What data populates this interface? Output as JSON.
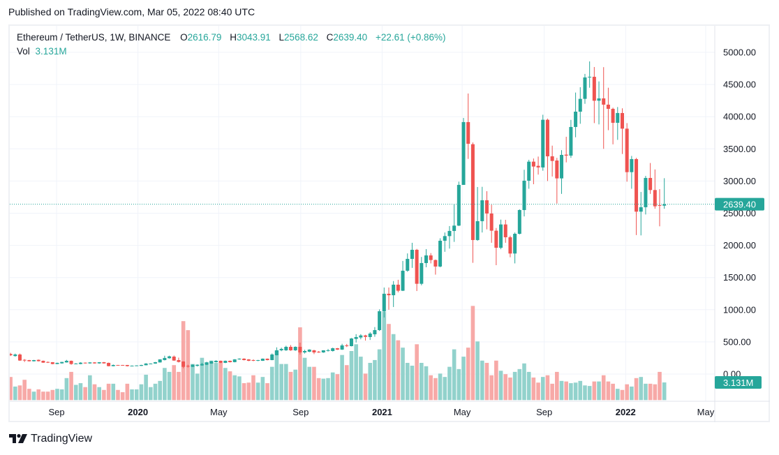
{
  "published": "Published on TradingView.com, Mar 05, 2022 08:40 UTC",
  "legend": {
    "symbol": "Ethereum / TetherUS, 1W, BINANCE",
    "o_label": "O",
    "o": "2616.79",
    "h_label": "H",
    "h": "3043.91",
    "l_label": "L",
    "l": "2568.62",
    "c_label": "C",
    "c": "2639.40",
    "change": "+22.61 (+0.86%)",
    "vol_label": "Vol",
    "vol": "3.131M"
  },
  "branding": {
    "name": "TradingView",
    "logo_icon": "tradingview-logo-icon"
  },
  "colors": {
    "up": "#26a69a",
    "down": "#ef5350",
    "up_volume": "#92d2cc",
    "down_volume": "#f7a9a7",
    "grid": "#f0f3fa"
  },
  "chart_data": {
    "type": "candlestick",
    "interval": "1W",
    "title": "",
    "xlabel": "",
    "ylabel": "",
    "ylim": [
      0,
      5300
    ],
    "grid": true,
    "price_axis_position": "right",
    "price_ticks": [
      "5000.00",
      "4500.00",
      "4000.00",
      "3500.00",
      "3000.00",
      "2500.00",
      "2000.00",
      "1500.00",
      "1000.00",
      "500.00",
      "0.00"
    ],
    "time_ticks": [
      {
        "label": "Sep",
        "date": "2019-09-01",
        "bold": false
      },
      {
        "label": "2020",
        "date": "2020-01-01",
        "bold": true
      },
      {
        "label": "May",
        "date": "2020-05-01",
        "bold": false
      },
      {
        "label": "Sep",
        "date": "2020-09-01",
        "bold": false
      },
      {
        "label": "2021",
        "date": "2021-01-01",
        "bold": true
      },
      {
        "label": "May",
        "date": "2021-05-01",
        "bold": false
      },
      {
        "label": "Sep",
        "date": "2021-09-01",
        "bold": false
      },
      {
        "label": "2022",
        "date": "2022-01-01",
        "bold": true
      },
      {
        "label": "May",
        "date": "2022-05-01",
        "bold": false
      }
    ],
    "last_price": {
      "value": 2639.4,
      "label": "2639.40"
    },
    "last_volume": {
      "value": 3.131,
      "label": "3.131M"
    },
    "volume_unit": "M",
    "columns": [
      "date",
      "open",
      "high",
      "low",
      "close",
      "volume"
    ],
    "candles": [
      [
        "2019-06-24",
        312,
        330,
        280,
        292,
        4.1
      ],
      [
        "2019-07-01",
        280,
        318,
        270,
        304,
        2.4
      ],
      [
        "2019-07-08",
        304,
        318,
        205,
        210,
        2.6
      ],
      [
        "2019-07-15",
        221,
        232,
        188,
        210,
        3.6
      ],
      [
        "2019-07-22",
        217,
        220,
        196,
        199,
        2.0
      ],
      [
        "2019-07-29",
        199,
        220,
        196,
        217,
        1.5
      ],
      [
        "2019-08-05",
        221,
        226,
        196,
        200,
        1.9
      ],
      [
        "2019-08-12",
        206,
        210,
        174,
        177,
        1.5
      ],
      [
        "2019-08-19",
        188,
        195,
        172,
        177,
        1.5
      ],
      [
        "2019-08-26",
        184,
        186,
        152,
        156,
        1.8
      ],
      [
        "2019-09-02",
        156,
        178,
        154,
        174,
        2.0
      ],
      [
        "2019-09-09",
        166,
        190,
        163,
        188,
        1.9
      ],
      [
        "2019-09-16",
        181,
        220,
        178,
        206,
        3.9
      ],
      [
        "2019-09-23",
        206,
        210,
        145,
        156,
        5.0
      ],
      [
        "2019-09-30",
        156,
        170,
        152,
        163,
        2.7
      ],
      [
        "2019-10-07",
        156,
        184,
        152,
        177,
        3.0
      ],
      [
        "2019-10-14",
        177,
        180,
        163,
        166,
        2.3
      ],
      [
        "2019-10-21",
        166,
        186,
        160,
        181,
        4.4
      ],
      [
        "2019-10-28",
        181,
        184,
        163,
        166,
        2.8
      ],
      [
        "2019-11-04",
        166,
        186,
        160,
        184,
        2.3
      ],
      [
        "2019-11-11",
        184,
        188,
        163,
        166,
        1.8
      ],
      [
        "2019-11-18",
        174,
        178,
        120,
        123,
        2.9
      ],
      [
        "2019-11-25",
        123,
        148,
        120,
        141,
        2.9
      ],
      [
        "2019-12-02",
        141,
        142,
        130,
        134,
        1.8
      ],
      [
        "2019-12-09",
        141,
        142,
        130,
        134,
        1.4
      ],
      [
        "2019-12-16",
        141,
        142,
        118,
        123,
        2.9
      ],
      [
        "2019-12-23",
        127,
        133,
        124,
        130,
        1.9
      ],
      [
        "2019-12-30",
        127,
        136,
        124,
        134,
        1.9
      ],
      [
        "2020-01-06",
        127,
        144,
        125,
        141,
        2.8
      ],
      [
        "2020-01-13",
        137,
        170,
        135,
        163,
        4.5
      ],
      [
        "2020-01-20",
        156,
        166,
        154,
        163,
        2.3
      ],
      [
        "2020-01-27",
        163,
        188,
        160,
        184,
        2.9
      ],
      [
        "2020-02-03",
        181,
        230,
        178,
        228,
        3.4
      ],
      [
        "2020-02-10",
        217,
        285,
        212,
        250,
        5.7
      ],
      [
        "2020-02-17",
        246,
        285,
        240,
        275,
        5.0
      ],
      [
        "2020-02-24",
        271,
        288,
        205,
        210,
        6.2
      ],
      [
        "2020-03-02",
        217,
        255,
        180,
        188,
        5.0
      ],
      [
        "2020-03-09",
        195,
        200,
        90,
        112,
        14.0
      ],
      [
        "2020-03-16",
        127,
        145,
        100,
        123,
        12.4
      ],
      [
        "2020-03-23",
        112,
        150,
        110,
        145,
        6.4
      ],
      [
        "2020-03-30",
        127,
        150,
        118,
        145,
        4.7
      ],
      [
        "2020-04-06",
        134,
        174,
        130,
        156,
        7.5
      ],
      [
        "2020-04-13",
        145,
        190,
        140,
        181,
        6.7
      ],
      [
        "2020-04-20",
        163,
        205,
        160,
        199,
        7.0
      ],
      [
        "2020-04-27",
        185,
        215,
        180,
        206,
        6.6
      ],
      [
        "2020-05-04",
        206,
        210,
        170,
        174,
        6.6
      ],
      [
        "2020-05-11",
        174,
        210,
        170,
        206,
        5.7
      ],
      [
        "2020-05-18",
        206,
        210,
        180,
        185,
        5.1
      ],
      [
        "2020-05-25",
        185,
        232,
        182,
        228,
        4.4
      ],
      [
        "2020-06-01",
        228,
        245,
        222,
        239,
        4.2
      ],
      [
        "2020-06-08",
        239,
        245,
        212,
        217,
        3.0
      ],
      [
        "2020-06-15",
        228,
        232,
        200,
        206,
        3.1
      ],
      [
        "2020-06-22",
        217,
        228,
        200,
        206,
        4.4
      ],
      [
        "2020-06-29",
        206,
        220,
        200,
        217,
        3.1
      ],
      [
        "2020-07-06",
        206,
        242,
        204,
        239,
        4.1
      ],
      [
        "2020-07-13",
        239,
        242,
        212,
        217,
        3.0
      ],
      [
        "2020-07-20",
        217,
        320,
        215,
        304,
        5.9
      ],
      [
        "2020-07-27",
        293,
        415,
        290,
        369,
        8.8
      ],
      [
        "2020-08-03",
        369,
        410,
        355,
        391,
        6.4
      ],
      [
        "2020-08-10",
        369,
        440,
        360,
        423,
        6.4
      ],
      [
        "2020-08-17",
        423,
        450,
        360,
        369,
        5.0
      ],
      [
        "2020-08-24",
        369,
        430,
        360,
        423,
        5.4
      ],
      [
        "2020-08-31",
        423,
        488,
        304,
        336,
        12.9
      ],
      [
        "2020-09-07",
        336,
        378,
        318,
        358,
        7.5
      ],
      [
        "2020-09-14",
        347,
        385,
        340,
        380,
        5.9
      ],
      [
        "2020-09-21",
        369,
        377,
        310,
        336,
        5.9
      ],
      [
        "2020-09-28",
        347,
        358,
        330,
        336,
        3.9
      ],
      [
        "2020-10-05",
        336,
        370,
        330,
        369,
        3.8
      ],
      [
        "2020-10-12",
        358,
        390,
        350,
        369,
        3.9
      ],
      [
        "2020-10-19",
        358,
        410,
        350,
        401,
        4.9
      ],
      [
        "2020-10-26",
        401,
        405,
        375,
        380,
        4.6
      ],
      [
        "2020-11-02",
        380,
        470,
        375,
        445,
        8.0
      ],
      [
        "2020-11-09",
        445,
        468,
        420,
        434,
        6.2
      ],
      [
        "2020-11-16",
        434,
        560,
        430,
        553,
        8.7
      ],
      [
        "2020-11-23",
        546,
        620,
        490,
        575,
        9.9
      ],
      [
        "2020-11-30",
        568,
        620,
        540,
        600,
        7.7
      ],
      [
        "2020-12-07",
        600,
        610,
        520,
        578,
        4.7
      ],
      [
        "2020-12-14",
        575,
        650,
        530,
        629,
        6.6
      ],
      [
        "2020-12-21",
        618,
        730,
        580,
        683,
        7.1
      ],
      [
        "2020-12-28",
        683,
        1005,
        670,
        976,
        9.0
      ],
      [
        "2021-01-04",
        976,
        1345,
        880,
        1248,
        15.7
      ],
      [
        "2021-01-11",
        1248,
        1345,
        1000,
        1225,
        13.5
      ],
      [
        "2021-01-18",
        1225,
        1445,
        1042,
        1389,
        11.7
      ],
      [
        "2021-01-25",
        1389,
        1465,
        1270,
        1295,
        10.6
      ],
      [
        "2021-02-01",
        1295,
        1758,
        1290,
        1606,
        9.3
      ],
      [
        "2021-02-08",
        1606,
        1875,
        1590,
        1790,
        6.6
      ],
      [
        "2021-02-15",
        1790,
        2040,
        1650,
        1931,
        6.1
      ],
      [
        "2021-02-22",
        1931,
        1945,
        1290,
        1403,
        9.9
      ],
      [
        "2021-03-01",
        1403,
        1820,
        1380,
        1725,
        6.6
      ],
      [
        "2021-03-08",
        1725,
        1942,
        1660,
        1844,
        6.0
      ],
      [
        "2021-03-15",
        1844,
        1880,
        1720,
        1772,
        4.4
      ],
      [
        "2021-03-22",
        1772,
        1780,
        1545,
        1671,
        3.9
      ],
      [
        "2021-03-29",
        1671,
        2110,
        1660,
        2072,
        4.7
      ],
      [
        "2021-04-05",
        2072,
        2200,
        1900,
        2144,
        4.1
      ],
      [
        "2021-04-12",
        2144,
        2300,
        1950,
        2224,
        5.9
      ],
      [
        "2021-04-19",
        2224,
        2640,
        2054,
        2307,
        9.0
      ],
      [
        "2021-04-26",
        2307,
        2990,
        2300,
        2940,
        5.5
      ],
      [
        "2021-05-03",
        2940,
        3980,
        2940,
        3916,
        7.7
      ],
      [
        "2021-05-10",
        3916,
        4360,
        3344,
        3579,
        9.3
      ],
      [
        "2021-05-17",
        3572,
        3600,
        1729,
        2083,
        16.7
      ],
      [
        "2021-05-24",
        2083,
        2907,
        2070,
        2376,
        10.4
      ],
      [
        "2021-05-31",
        2376,
        2910,
        2200,
        2701,
        7.0
      ],
      [
        "2021-06-07",
        2701,
        2842,
        2249,
        2495,
        6.6
      ],
      [
        "2021-06-14",
        2495,
        2632,
        2040,
        2228,
        4.4
      ],
      [
        "2021-06-21",
        2228,
        2270,
        1692,
        1963,
        7.0
      ],
      [
        "2021-06-28",
        1963,
        2400,
        1940,
        2325,
        5.2
      ],
      [
        "2021-07-05",
        2325,
        2397,
        2040,
        2126,
        4.6
      ],
      [
        "2021-07-12",
        2126,
        2150,
        1815,
        1873,
        4.0
      ],
      [
        "2021-07-19",
        1873,
        2200,
        1720,
        2180,
        5.0
      ],
      [
        "2021-07-26",
        2180,
        2560,
        2170,
        2549,
        5.5
      ],
      [
        "2021-08-02",
        2549,
        3175,
        2450,
        3005,
        6.5
      ],
      [
        "2021-08-09",
        3005,
        3330,
        2880,
        3301,
        5.0
      ],
      [
        "2021-08-16",
        3301,
        3350,
        2950,
        3225,
        4.0
      ],
      [
        "2021-08-23",
        3236,
        3380,
        3100,
        3211,
        3.1
      ],
      [
        "2021-08-30",
        3211,
        4030,
        3160,
        3952,
        4.1
      ],
      [
        "2021-09-06",
        3952,
        3970,
        3000,
        3384,
        4.4
      ],
      [
        "2021-09-13",
        3384,
        3550,
        3070,
        3312,
        2.9
      ],
      [
        "2021-09-20",
        3319,
        3360,
        2650,
        3041,
        5.0
      ],
      [
        "2021-09-27",
        3041,
        3480,
        2800,
        3406,
        3.4
      ],
      [
        "2021-10-04",
        3410,
        3688,
        3290,
        3395,
        3.3
      ],
      [
        "2021-10-11",
        3395,
        3950,
        3360,
        3840,
        3.0
      ],
      [
        "2021-10-18",
        3840,
        4375,
        3680,
        4078,
        3.1
      ],
      [
        "2021-10-25",
        4078,
        4458,
        3890,
        4277,
        3.4
      ],
      [
        "2021-11-01",
        4277,
        4665,
        4200,
        4610,
        2.6
      ],
      [
        "2021-11-08",
        4610,
        4859,
        4450,
        4620,
        2.5
      ],
      [
        "2021-11-15",
        4620,
        4772,
        3900,
        4248,
        3.3
      ],
      [
        "2021-11-22",
        4248,
        4548,
        3880,
        4284,
        3.3
      ],
      [
        "2021-11-29",
        4284,
        4770,
        3500,
        4187,
        4.4
      ],
      [
        "2021-12-06",
        4187,
        4450,
        3790,
        4122,
        3.3
      ],
      [
        "2021-12-13",
        4122,
        4140,
        3570,
        3905,
        2.9
      ],
      [
        "2021-12-20",
        3905,
        4150,
        3640,
        4057,
        2.0
      ],
      [
        "2021-12-27",
        4057,
        4130,
        3420,
        3814,
        1.8
      ],
      [
        "2022-01-03",
        3814,
        3900,
        2990,
        3138,
        2.8
      ],
      [
        "2022-01-10",
        3138,
        3390,
        2880,
        3341,
        2.4
      ],
      [
        "2022-01-17",
        3341,
        3360,
        2160,
        2524,
        3.9
      ],
      [
        "2022-01-24",
        2524,
        2830,
        2155,
        2593,
        4.1
      ],
      [
        "2022-01-31",
        2593,
        3080,
        2480,
        3048,
        2.9
      ],
      [
        "2022-02-07",
        3048,
        3280,
        2800,
        2860,
        2.9
      ],
      [
        "2022-02-14",
        2860,
        3180,
        2570,
        2607,
        2.8
      ],
      [
        "2022-02-21",
        2625,
        2874,
        2296,
        2617,
        5.0
      ],
      [
        "2022-02-28",
        2616.79,
        3043.91,
        2568.62,
        2639.4,
        3.131
      ]
    ]
  }
}
